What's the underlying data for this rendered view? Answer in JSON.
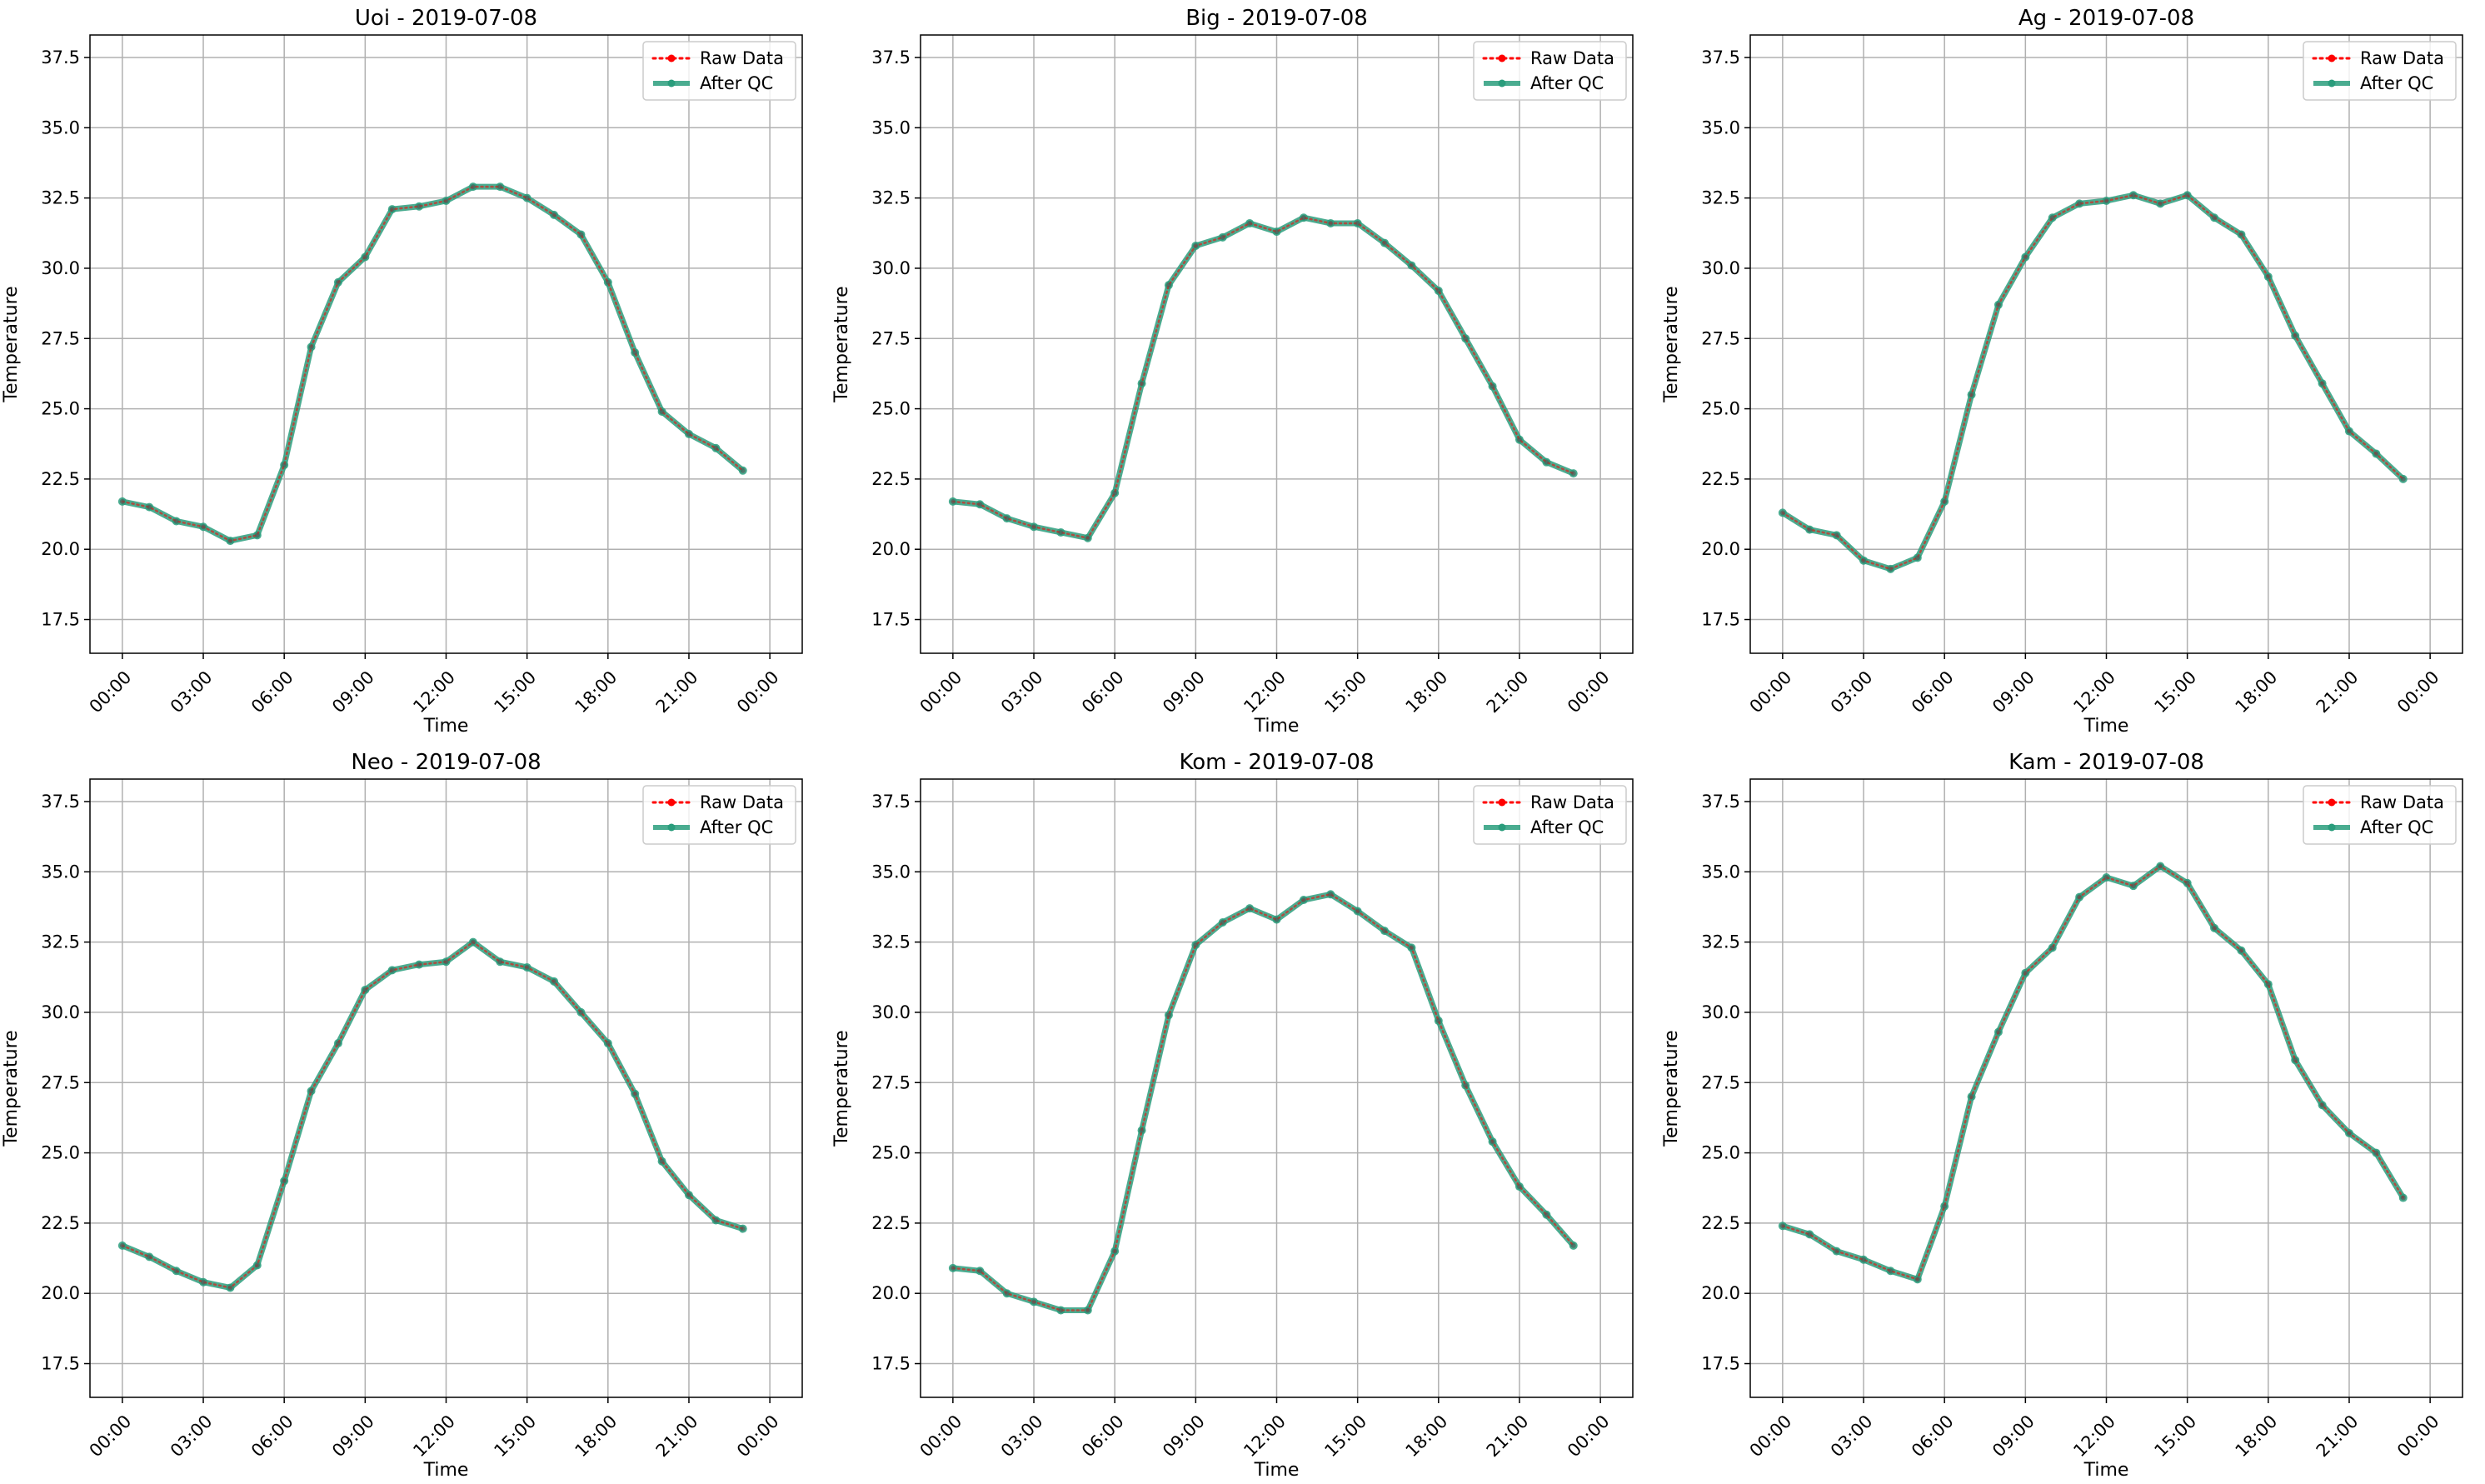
{
  "chart_data": [
    {
      "type": "line",
      "title": "Uoi - 2019-07-08",
      "xlabel": "Time",
      "ylabel": "Temperature",
      "ylim": [
        16.3,
        38.3
      ],
      "yticks": [
        "17.5",
        "20.0",
        "22.5",
        "25.0",
        "27.5",
        "30.0",
        "32.5",
        "35.0",
        "37.5"
      ],
      "xticks": [
        "00:00",
        "03:00",
        "06:00",
        "09:00",
        "12:00",
        "15:00",
        "18:00",
        "21:00",
        "00:00"
      ],
      "x": [
        "00:00",
        "01:00",
        "02:00",
        "03:00",
        "04:00",
        "05:00",
        "06:00",
        "07:00",
        "08:00",
        "09:00",
        "10:00",
        "11:00",
        "12:00",
        "13:00",
        "14:00",
        "15:00",
        "16:00",
        "17:00",
        "18:00",
        "19:00",
        "20:00",
        "21:00",
        "22:00",
        "23:00"
      ],
      "grid": true,
      "legend": "top-right",
      "series": [
        {
          "name": "Raw Data",
          "color": "#ff0000",
          "style": "dotted",
          "values": [
            21.7,
            21.5,
            21.0,
            20.8,
            20.3,
            20.5,
            23.0,
            27.2,
            29.5,
            30.4,
            32.1,
            32.2,
            32.4,
            32.9,
            32.9,
            32.5,
            31.9,
            31.2,
            29.5,
            27.0,
            24.9,
            24.1,
            23.6,
            22.8
          ]
        },
        {
          "name": "After QC",
          "color": "#2a9d7c",
          "style": "solid",
          "values": [
            21.7,
            21.5,
            21.0,
            20.8,
            20.3,
            20.5,
            23.0,
            27.2,
            29.5,
            30.4,
            32.1,
            32.2,
            32.4,
            32.9,
            32.9,
            32.5,
            31.9,
            31.2,
            29.5,
            27.0,
            24.9,
            24.1,
            23.6,
            22.8
          ]
        }
      ]
    },
    {
      "type": "line",
      "title": "Big - 2019-07-08",
      "xlabel": "Time",
      "ylabel": "Temperature",
      "ylim": [
        16.3,
        38.3
      ],
      "yticks": [
        "17.5",
        "20.0",
        "22.5",
        "25.0",
        "27.5",
        "30.0",
        "32.5",
        "35.0",
        "37.5"
      ],
      "xticks": [
        "00:00",
        "03:00",
        "06:00",
        "09:00",
        "12:00",
        "15:00",
        "18:00",
        "21:00",
        "00:00"
      ],
      "x": [
        "00:00",
        "01:00",
        "02:00",
        "03:00",
        "04:00",
        "05:00",
        "06:00",
        "07:00",
        "08:00",
        "09:00",
        "10:00",
        "11:00",
        "12:00",
        "13:00",
        "14:00",
        "15:00",
        "16:00",
        "17:00",
        "18:00",
        "19:00",
        "20:00",
        "21:00",
        "22:00",
        "23:00"
      ],
      "grid": true,
      "legend": "top-right",
      "series": [
        {
          "name": "Raw Data",
          "color": "#ff0000",
          "style": "dotted",
          "values": [
            21.7,
            21.6,
            21.1,
            20.8,
            20.6,
            20.4,
            22.0,
            25.9,
            29.4,
            30.8,
            31.1,
            31.6,
            31.3,
            31.8,
            31.6,
            31.6,
            30.9,
            30.1,
            29.2,
            27.5,
            25.8,
            23.9,
            23.1,
            22.7
          ]
        },
        {
          "name": "After QC",
          "color": "#2a9d7c",
          "style": "solid",
          "values": [
            21.7,
            21.6,
            21.1,
            20.8,
            20.6,
            20.4,
            22.0,
            25.9,
            29.4,
            30.8,
            31.1,
            31.6,
            31.3,
            31.8,
            31.6,
            31.6,
            30.9,
            30.1,
            29.2,
            27.5,
            25.8,
            23.9,
            23.1,
            22.7
          ]
        }
      ]
    },
    {
      "type": "line",
      "title": "Ag - 2019-07-08",
      "xlabel": "Time",
      "ylabel": "Temperature",
      "ylim": [
        16.3,
        38.3
      ],
      "yticks": [
        "17.5",
        "20.0",
        "22.5",
        "25.0",
        "27.5",
        "30.0",
        "32.5",
        "35.0",
        "37.5"
      ],
      "xticks": [
        "00:00",
        "03:00",
        "06:00",
        "09:00",
        "12:00",
        "15:00",
        "18:00",
        "21:00",
        "00:00"
      ],
      "x": [
        "00:00",
        "01:00",
        "02:00",
        "03:00",
        "04:00",
        "05:00",
        "06:00",
        "07:00",
        "08:00",
        "09:00",
        "10:00",
        "11:00",
        "12:00",
        "13:00",
        "14:00",
        "15:00",
        "16:00",
        "17:00",
        "18:00",
        "19:00",
        "20:00",
        "21:00",
        "22:00",
        "23:00"
      ],
      "grid": true,
      "legend": "top-right",
      "series": [
        {
          "name": "Raw Data",
          "color": "#ff0000",
          "style": "dotted",
          "values": [
            21.3,
            20.7,
            20.5,
            19.6,
            19.3,
            19.7,
            21.7,
            25.5,
            28.7,
            30.4,
            31.8,
            32.3,
            32.4,
            32.6,
            32.3,
            32.6,
            31.8,
            31.2,
            29.7,
            27.6,
            25.9,
            24.2,
            23.4,
            22.5
          ]
        },
        {
          "name": "After QC",
          "color": "#2a9d7c",
          "style": "solid",
          "values": [
            21.3,
            20.7,
            20.5,
            19.6,
            19.3,
            19.7,
            21.7,
            25.5,
            28.7,
            30.4,
            31.8,
            32.3,
            32.4,
            32.6,
            32.3,
            32.6,
            31.8,
            31.2,
            29.7,
            27.6,
            25.9,
            24.2,
            23.4,
            22.5
          ]
        }
      ]
    },
    {
      "type": "line",
      "title": "Neo - 2019-07-08",
      "xlabel": "Time",
      "ylabel": "Temperature",
      "ylim": [
        16.3,
        38.3
      ],
      "yticks": [
        "17.5",
        "20.0",
        "22.5",
        "25.0",
        "27.5",
        "30.0",
        "32.5",
        "35.0",
        "37.5"
      ],
      "xticks": [
        "00:00",
        "03:00",
        "06:00",
        "09:00",
        "12:00",
        "15:00",
        "18:00",
        "21:00",
        "00:00"
      ],
      "x": [
        "00:00",
        "01:00",
        "02:00",
        "03:00",
        "04:00",
        "05:00",
        "06:00",
        "07:00",
        "08:00",
        "09:00",
        "10:00",
        "11:00",
        "12:00",
        "13:00",
        "14:00",
        "15:00",
        "16:00",
        "17:00",
        "18:00",
        "19:00",
        "20:00",
        "21:00",
        "22:00",
        "23:00"
      ],
      "grid": true,
      "legend": "top-right",
      "series": [
        {
          "name": "Raw Data",
          "color": "#ff0000",
          "style": "dotted",
          "values": [
            21.7,
            21.3,
            20.8,
            20.4,
            20.2,
            21.0,
            24.0,
            27.2,
            28.9,
            30.8,
            31.5,
            31.7,
            31.8,
            32.5,
            31.8,
            31.6,
            31.1,
            30.0,
            28.9,
            27.1,
            24.7,
            23.5,
            22.6,
            22.3
          ]
        },
        {
          "name": "After QC",
          "color": "#2a9d7c",
          "style": "solid",
          "values": [
            21.7,
            21.3,
            20.8,
            20.4,
            20.2,
            21.0,
            24.0,
            27.2,
            28.9,
            30.8,
            31.5,
            31.7,
            31.8,
            32.5,
            31.8,
            31.6,
            31.1,
            30.0,
            28.9,
            27.1,
            24.7,
            23.5,
            22.6,
            22.3
          ]
        }
      ]
    },
    {
      "type": "line",
      "title": "Kom - 2019-07-08",
      "xlabel": "Time",
      "ylabel": "Temperature",
      "ylim": [
        16.3,
        38.3
      ],
      "yticks": [
        "17.5",
        "20.0",
        "22.5",
        "25.0",
        "27.5",
        "30.0",
        "32.5",
        "35.0",
        "37.5"
      ],
      "xticks": [
        "00:00",
        "03:00",
        "06:00",
        "09:00",
        "12:00",
        "15:00",
        "18:00",
        "21:00",
        "00:00"
      ],
      "x": [
        "00:00",
        "01:00",
        "02:00",
        "03:00",
        "04:00",
        "05:00",
        "06:00",
        "07:00",
        "08:00",
        "09:00",
        "10:00",
        "11:00",
        "12:00",
        "13:00",
        "14:00",
        "15:00",
        "16:00",
        "17:00",
        "18:00",
        "19:00",
        "20:00",
        "21:00",
        "22:00",
        "23:00"
      ],
      "grid": true,
      "legend": "top-right",
      "series": [
        {
          "name": "Raw Data",
          "color": "#ff0000",
          "style": "dotted",
          "values": [
            20.9,
            20.8,
            20.0,
            19.7,
            19.4,
            19.4,
            21.5,
            25.8,
            29.9,
            32.4,
            33.2,
            33.7,
            33.3,
            34.0,
            34.2,
            33.6,
            32.9,
            32.3,
            29.7,
            27.4,
            25.4,
            23.8,
            22.8,
            21.7
          ]
        },
        {
          "name": "After QC",
          "color": "#2a9d7c",
          "style": "solid",
          "values": [
            20.9,
            20.8,
            20.0,
            19.7,
            19.4,
            19.4,
            21.5,
            25.8,
            29.9,
            32.4,
            33.2,
            33.7,
            33.3,
            34.0,
            34.2,
            33.6,
            32.9,
            32.3,
            29.7,
            27.4,
            25.4,
            23.8,
            22.8,
            21.7
          ]
        }
      ]
    },
    {
      "type": "line",
      "title": "Kam - 2019-07-08",
      "xlabel": "Time",
      "ylabel": "Temperature",
      "ylim": [
        16.3,
        38.3
      ],
      "yticks": [
        "17.5",
        "20.0",
        "22.5",
        "25.0",
        "27.5",
        "30.0",
        "32.5",
        "35.0",
        "37.5"
      ],
      "xticks": [
        "00:00",
        "03:00",
        "06:00",
        "09:00",
        "12:00",
        "15:00",
        "18:00",
        "21:00",
        "00:00"
      ],
      "x": [
        "00:00",
        "01:00",
        "02:00",
        "03:00",
        "04:00",
        "05:00",
        "06:00",
        "07:00",
        "08:00",
        "09:00",
        "10:00",
        "11:00",
        "12:00",
        "13:00",
        "14:00",
        "15:00",
        "16:00",
        "17:00",
        "18:00",
        "19:00",
        "20:00",
        "21:00",
        "22:00",
        "23:00"
      ],
      "grid": true,
      "legend": "top-right",
      "series": [
        {
          "name": "Raw Data",
          "color": "#ff0000",
          "style": "dotted",
          "values": [
            22.4,
            22.1,
            21.5,
            21.2,
            20.8,
            20.5,
            23.1,
            27.0,
            29.3,
            31.4,
            32.3,
            34.1,
            34.8,
            34.5,
            35.2,
            34.6,
            33.0,
            32.2,
            31.0,
            28.3,
            26.7,
            25.7,
            25.0,
            23.4
          ]
        },
        {
          "name": "After QC",
          "color": "#2a9d7c",
          "style": "solid",
          "values": [
            22.4,
            22.1,
            21.5,
            21.2,
            20.8,
            20.5,
            23.1,
            27.0,
            29.3,
            31.4,
            32.3,
            34.1,
            34.8,
            34.5,
            35.2,
            34.6,
            33.0,
            32.2,
            31.0,
            28.3,
            26.7,
            25.7,
            25.0,
            23.4
          ]
        }
      ]
    }
  ]
}
